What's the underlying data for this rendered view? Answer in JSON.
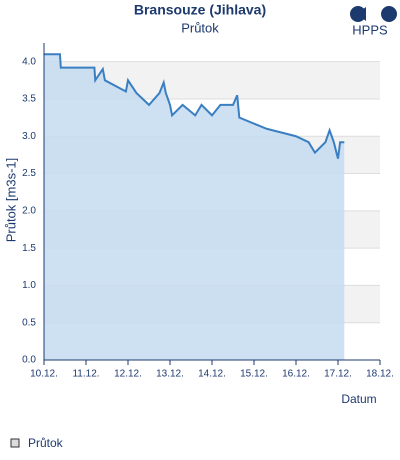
{
  "chart_data": {
    "type": "area",
    "title": "Bransouze (Jihlava)",
    "subtitle": "Průtok",
    "logo": "HPPS",
    "y_label": "Průtok [m3s-1]",
    "x_label": "Datum",
    "series": [
      {
        "name": "Průtok",
        "color": "#3a7fc1",
        "fill": "#c5dcf1",
        "x": [
          10.0,
          10.38,
          10.4,
          11.2,
          11.22,
          11.4,
          11.45,
          11.95,
          12.0,
          12.2,
          12.5,
          12.75,
          12.85,
          12.9,
          13.0,
          13.05,
          13.3,
          13.6,
          13.75,
          14.0,
          14.2,
          14.5,
          14.6,
          14.65,
          15.3,
          16.0,
          16.3,
          16.45,
          16.7,
          16.8,
          16.9,
          17.0,
          17.05,
          17.15
        ],
        "values": [
          4.1,
          4.1,
          3.92,
          3.92,
          3.75,
          3.9,
          3.75,
          3.6,
          3.75,
          3.58,
          3.42,
          3.58,
          3.72,
          3.58,
          3.42,
          3.28,
          3.42,
          3.28,
          3.42,
          3.28,
          3.42,
          3.42,
          3.55,
          3.25,
          3.1,
          3.0,
          2.92,
          2.78,
          2.92,
          3.08,
          2.92,
          2.7,
          2.92,
          2.92
        ]
      }
    ],
    "xlim": [
      10,
      18
    ],
    "xticks": [
      {
        "value": 10,
        "label": "10.12."
      },
      {
        "value": 11,
        "label": "11.12."
      },
      {
        "value": 12,
        "label": "12.12."
      },
      {
        "value": 13,
        "label": "13.12."
      },
      {
        "value": 14,
        "label": "14.12."
      },
      {
        "value": 15,
        "label": "15.12."
      },
      {
        "value": 16,
        "label": "16.12."
      },
      {
        "value": 17,
        "label": "17.12."
      },
      {
        "value": 18,
        "label": "18.12."
      }
    ],
    "ylim": [
      0,
      4.25
    ],
    "yticks": [
      {
        "value": 0,
        "label": "0.0"
      },
      0.5,
      {
        "value": 1,
        "label": "1.0"
      },
      1.5,
      {
        "value": 2,
        "label": "2.0"
      },
      2.5,
      {
        "value": 3,
        "label": "3.0"
      },
      3.5,
      {
        "value": 4,
        "label": "4.0"
      }
    ],
    "grid": true
  }
}
